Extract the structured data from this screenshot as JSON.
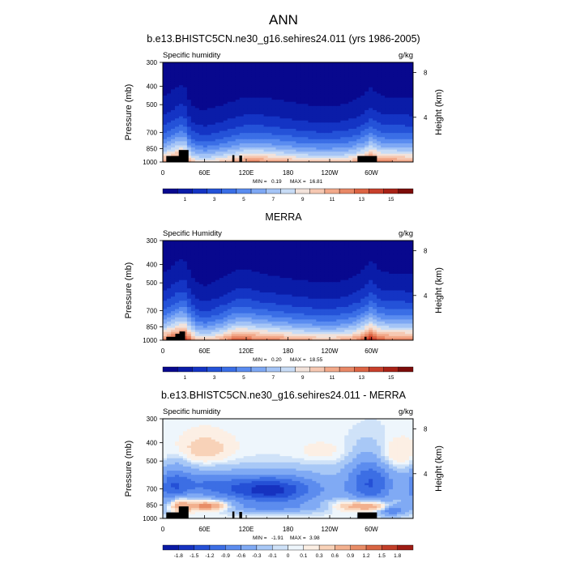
{
  "figure": {
    "title": "ANN"
  },
  "colors": {
    "abs_palette": [
      "#08088e",
      "#0a1ca8",
      "#1434c4",
      "#2452d8",
      "#3a6ee6",
      "#5a8cf0",
      "#7ea8f4",
      "#a4c4f6",
      "#c8dcf6",
      "#f2e2da",
      "#f6c8b2",
      "#f2a98a",
      "#e88866",
      "#dc6444",
      "#c8402c",
      "#a82216",
      "#7c0c0a"
    ],
    "diff_palette": [
      "#0a1aa4",
      "#1632c0",
      "#2550d6",
      "#3c6ee4",
      "#5c8cee",
      "#80aaf4",
      "#a8c8f6",
      "#cfe2f8",
      "#eef6fc",
      "#fcefe4",
      "#f8d2b8",
      "#f2b08e",
      "#e88c66",
      "#d86442",
      "#c23e28",
      "#9e1c14"
    ],
    "terrain": "#000000"
  },
  "chart_data": [
    {
      "type": "heatmap",
      "title": "b.e13.BHISTC5CN.ne30_g16.sehires24.011 (yrs 1986-2005)",
      "left_label": "Specific humidity",
      "right_label": "g/kg",
      "xlabel": "",
      "ylabel": "Pressure (mb)",
      "ylabel_right": "Height (km)",
      "x_ticks": [
        "0",
        "60E",
        "120E",
        "180",
        "120W",
        "60W"
      ],
      "x_range_deg": [
        0,
        360
      ],
      "y_ticks": [
        "300",
        "400",
        "500",
        "700",
        "850",
        "1000"
      ],
      "y_range_mb": [
        300,
        1000
      ],
      "y_right_ticks": [
        "8",
        "4"
      ],
      "stats": {
        "min_label": "MIN =",
        "min": "0.19",
        "max_label": "MAX =",
        "max": "16.81"
      },
      "colorbar_labels": [
        "1",
        "3",
        "5",
        "7",
        "9",
        "11",
        "13",
        "15"
      ],
      "colorbar_levels": [
        0,
        1,
        2,
        3,
        4,
        5,
        6,
        7,
        8,
        9,
        10,
        11,
        12,
        13,
        14,
        15,
        16,
        17
      ],
      "field": {
        "x_deg": [
          0,
          10,
          20,
          30,
          40,
          50,
          60,
          70,
          80,
          90,
          100,
          110,
          120,
          130,
          140,
          150,
          160,
          170,
          180,
          190,
          200,
          210,
          220,
          230,
          240,
          250,
          260,
          270,
          280,
          290,
          300,
          310,
          320,
          330,
          340,
          350,
          360
        ],
        "surface_g_per_kg": [
          12,
          13,
          14,
          15,
          11,
          10,
          9.8,
          10,
          10.5,
          11,
          11.5,
          12,
          12.5,
          12.5,
          12.5,
          12.3,
          12,
          11.8,
          11.5,
          11.2,
          11,
          10.8,
          10.6,
          10.5,
          10.5,
          10.6,
          10.8,
          11.2,
          11.8,
          13,
          14.5,
          13,
          12.5,
          12.5,
          12.4,
          12.2,
          12
        ],
        "depth_factor": [
          1,
          1.05,
          1.1,
          1.12,
          0.95,
          0.9,
          0.88,
          0.9,
          0.92,
          0.94,
          0.96,
          0.98,
          1,
          1,
          1,
          0.99,
          0.98,
          0.97,
          0.96,
          0.95,
          0.94,
          0.93,
          0.92,
          0.92,
          0.92,
          0.93,
          0.94,
          0.96,
          0.98,
          1.02,
          1.08,
          1.02,
          1,
          1,
          1,
          1,
          1
        ]
      },
      "terrain_blocks": [
        {
          "x0": 5,
          "x1": 35,
          "p_top": 930
        },
        {
          "x0": 23,
          "x1": 37,
          "p_top": 865
        },
        {
          "x0": 100,
          "x1": 103,
          "p_top": 920
        },
        {
          "x0": 110,
          "x1": 114,
          "p_top": 925
        },
        {
          "x0": 280,
          "x1": 308,
          "p_top": 930
        }
      ]
    },
    {
      "type": "heatmap",
      "title": "MERRA",
      "left_label": "Specific Humidity",
      "right_label": "g/kg",
      "xlabel": "",
      "ylabel": "Pressure (mb)",
      "ylabel_right": "Height (km)",
      "x_ticks": [
        "0",
        "60E",
        "120E",
        "180",
        "120W",
        "60W"
      ],
      "x_range_deg": [
        0,
        360
      ],
      "y_ticks": [
        "300",
        "400",
        "500",
        "700",
        "850",
        "1000"
      ],
      "y_range_mb": [
        300,
        1000
      ],
      "y_right_ticks": [
        "8",
        "4"
      ],
      "stats": {
        "min_label": "MIN =",
        "min": "0.20",
        "max_label": "MAX =",
        "max": "18.55"
      },
      "colorbar_labels": [
        "1",
        "3",
        "5",
        "7",
        "9",
        "11",
        "13",
        "15"
      ],
      "colorbar_levels": [
        0,
        1,
        2,
        3,
        4,
        5,
        6,
        7,
        8,
        9,
        10,
        11,
        12,
        13,
        14,
        15,
        16,
        17
      ],
      "field": {
        "x_deg": [
          0,
          10,
          20,
          30,
          40,
          50,
          60,
          70,
          80,
          90,
          100,
          110,
          120,
          130,
          140,
          150,
          160,
          170,
          180,
          190,
          200,
          210,
          220,
          230,
          240,
          250,
          260,
          270,
          280,
          290,
          300,
          310,
          320,
          330,
          340,
          350,
          360
        ],
        "surface_g_per_kg": [
          13,
          14,
          15,
          16,
          13,
          11,
          10.5,
          10.8,
          11.5,
          12.5,
          13.5,
          14,
          14,
          13.5,
          13.3,
          13,
          12.8,
          12.5,
          12.2,
          12,
          11.8,
          11.6,
          11.4,
          11.3,
          11.2,
          11.3,
          11.6,
          12,
          12.8,
          14,
          16,
          14,
          13.5,
          13.4,
          13.3,
          13.2,
          13
        ],
        "depth_factor": [
          1,
          1.06,
          1.12,
          1.15,
          1,
          0.92,
          0.9,
          0.92,
          0.95,
          0.98,
          1.02,
          1.04,
          1.04,
          1.02,
          1,
          0.99,
          0.98,
          0.97,
          0.96,
          0.95,
          0.94,
          0.93,
          0.92,
          0.92,
          0.92,
          0.93,
          0.95,
          0.97,
          1,
          1.05,
          1.12,
          1.04,
          1.01,
          1,
          1,
          1,
          1
        ]
      },
      "terrain_blocks": [
        {
          "x0": 5,
          "x1": 30,
          "p_top": 960
        },
        {
          "x0": 18,
          "x1": 30,
          "p_top": 925
        },
        {
          "x0": 24,
          "x1": 32,
          "p_top": 900
        },
        {
          "x0": 290,
          "x1": 293,
          "p_top": 960
        }
      ]
    },
    {
      "type": "heatmap",
      "title": "b.e13.BHISTC5CN.ne30_g16.sehires24.011 - MERRA",
      "left_label": "Specific humidity",
      "right_label": "g/kg",
      "xlabel": "",
      "ylabel": "Pressure (mb)",
      "ylabel_right": "Height (km)",
      "x_ticks": [
        "0",
        "60E",
        "120E",
        "180",
        "120W",
        "60W"
      ],
      "x_range_deg": [
        0,
        360
      ],
      "y_ticks": [
        "300",
        "400",
        "500",
        "700",
        "850",
        "1000"
      ],
      "y_range_mb": [
        300,
        1000
      ],
      "y_right_ticks": [
        "8",
        "4"
      ],
      "stats": {
        "min_label": "MIN =",
        "min": "-1.91",
        "max_label": "MAX =",
        "max": "3.98"
      },
      "colorbar_labels": [
        "-1.8",
        "-1.5",
        "-1.2",
        "-0.9",
        "-0.6",
        "-0.3",
        "-0.1",
        "0",
        "0.1",
        "0.3",
        "0.6",
        "0.9",
        "1.2",
        "1.5",
        "1.8"
      ],
      "colorbar_levels": [
        -2.1,
        -1.8,
        -1.5,
        -1.2,
        -0.9,
        -0.6,
        -0.3,
        -0.1,
        0,
        0.1,
        0.3,
        0.6,
        0.9,
        1.2,
        1.5,
        1.8,
        2.1
      ],
      "field": {
        "blobs": [
          {
            "lon": 110,
            "p": 700,
            "sx": 45,
            "sy": 90,
            "amp": -0.9
          },
          {
            "lon": 160,
            "p": 720,
            "sx": 35,
            "sy": 80,
            "amp": -0.8
          },
          {
            "lon": 200,
            "p": 700,
            "sx": 50,
            "sy": 110,
            "amp": -0.6
          },
          {
            "lon": 300,
            "p": 650,
            "sx": 25,
            "sy": 140,
            "amp": -1.2
          },
          {
            "lon": 15,
            "p": 700,
            "sx": 18,
            "sy": 130,
            "amp": -1.0
          },
          {
            "lon": 55,
            "p": 650,
            "sx": 30,
            "sy": 70,
            "amp": -0.5
          },
          {
            "lon": 60,
            "p": 430,
            "sx": 25,
            "sy": 50,
            "amp": 0.45
          },
          {
            "lon": 335,
            "p": 470,
            "sx": 20,
            "sy": 60,
            "amp": 0.4
          },
          {
            "lon": 230,
            "p": 450,
            "sx": 30,
            "sy": 40,
            "amp": 0.15
          },
          {
            "lon": 65,
            "p": 860,
            "sx": 20,
            "sy": 35,
            "amp": 1.3
          },
          {
            "lon": 25,
            "p": 850,
            "sx": 12,
            "sy": 60,
            "amp": 1.1
          },
          {
            "lon": 280,
            "p": 860,
            "sx": 25,
            "sy": 40,
            "amp": 0.9
          },
          {
            "lon": 310,
            "p": 870,
            "sx": 18,
            "sy": 35,
            "amp": 0.7
          },
          {
            "lon": 330,
            "p": 900,
            "sx": 15,
            "sy": 45,
            "amp": -1.0
          },
          {
            "lon": 150,
            "p": 880,
            "sx": 60,
            "sy": 40,
            "amp": -0.5
          }
        ]
      },
      "terrain_blocks": [
        {
          "x0": 5,
          "x1": 35,
          "p_top": 930
        },
        {
          "x0": 23,
          "x1": 37,
          "p_top": 865
        },
        {
          "x0": 100,
          "x1": 103,
          "p_top": 920
        },
        {
          "x0": 110,
          "x1": 114,
          "p_top": 925
        },
        {
          "x0": 280,
          "x1": 308,
          "p_top": 930
        }
      ]
    }
  ]
}
